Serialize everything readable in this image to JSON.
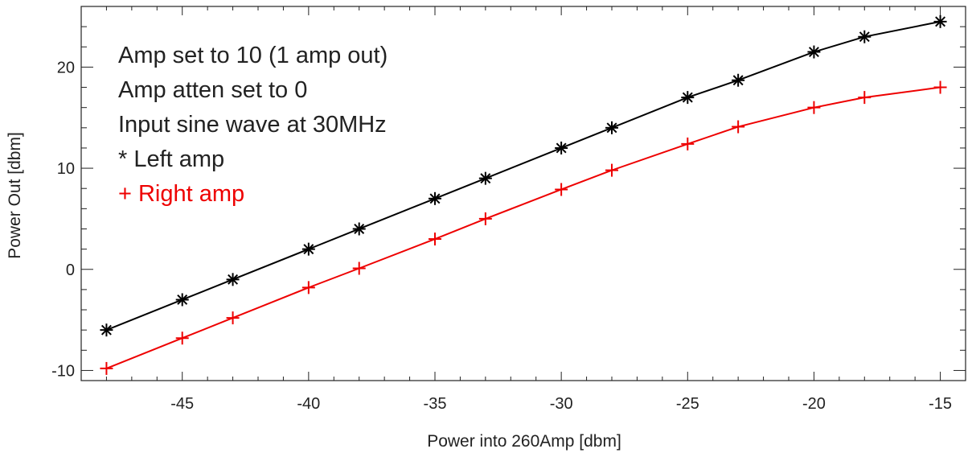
{
  "chart_data": {
    "type": "line",
    "xlabel": "Power into 260Amp [dbm]",
    "ylabel": "Power Out [dbm]",
    "xlim": [
      -49,
      -14
    ],
    "ylim": [
      -11,
      26
    ],
    "xticks": [
      -45,
      -40,
      -35,
      -30,
      -25,
      -20,
      -15
    ],
    "yticks": [
      -10,
      0,
      10,
      20
    ],
    "xtick_labels": [
      "-45",
      "-40",
      "-35",
      "-30",
      "-25",
      "-20",
      "-15"
    ],
    "ytick_labels": [
      "-10",
      "0",
      "10",
      "20"
    ],
    "grid": false,
    "series": [
      {
        "name": "Left amp",
        "marker": "asterisk",
        "color": "#000000",
        "x": [
          -48,
          -45,
          -43,
          -40,
          -38,
          -35,
          -33,
          -30,
          -28,
          -25,
          -23,
          -20,
          -18,
          -15
        ],
        "y": [
          -6,
          -3,
          -1,
          2,
          4,
          7,
          9,
          12,
          14,
          17,
          18.7,
          21.5,
          23,
          24.5
        ]
      },
      {
        "name": "Right amp",
        "marker": "plus",
        "color": "#ee0000",
        "x": [
          -48,
          -45,
          -43,
          -40,
          -38,
          -35,
          -33,
          -30,
          -28,
          -25,
          -23,
          -20,
          -18,
          -15
        ],
        "y": [
          -9.8,
          -6.8,
          -4.8,
          -1.8,
          0.1,
          3,
          5,
          7.9,
          9.8,
          12.4,
          14.1,
          16,
          17,
          18
        ]
      }
    ],
    "annotations": [
      {
        "text": "Amp set to 10 (1 amp out)",
        "color": "#222222"
      },
      {
        "text": "Amp atten set to 0",
        "color": "#222222"
      },
      {
        "text": "Input sine wave at 30MHz",
        "color": "#222222"
      },
      {
        "text": "* Left amp",
        "color": "#222222"
      },
      {
        "text": "+ Right amp",
        "color": "#ee0000"
      }
    ]
  }
}
